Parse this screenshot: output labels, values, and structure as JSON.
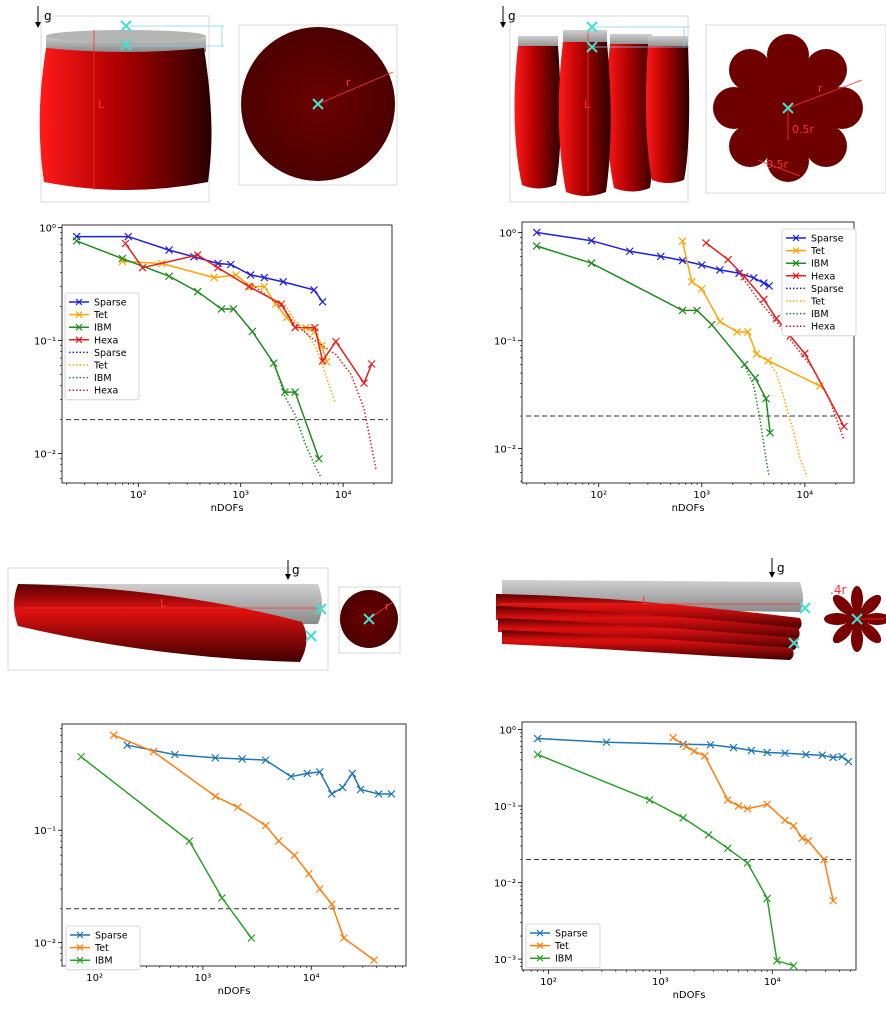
{
  "illustrations": {
    "a": {
      "g": "g",
      "L": "L",
      "r": "r"
    },
    "b": {
      "g": "g",
      "L": "L",
      "r": "r",
      "half1": "0.5r",
      "half2": "0.5r"
    },
    "c": {
      "g": "g",
      "L": "L",
      "r": "r"
    },
    "d": {
      "g": "g",
      "L": "L",
      "r": ".4r"
    }
  },
  "colors": {
    "Sparse": "#1f1fe0",
    "Tet": "#ffa500",
    "IBM": "#1e8c1e",
    "Hexa": "#e81c1c",
    "Sparse_mpl": "#1f77b4",
    "Tet_mpl": "#ff7f0e",
    "IBM_mpl": "#2ca02c",
    "body_red": "#8b0000",
    "cap_grey": "#9a9a9a",
    "cross": "#40e0d0"
  },
  "chart_data": [
    {
      "type": "line",
      "xscale": "log",
      "yscale": "log",
      "xlim": [
        18,
        30000
      ],
      "ylim": [
        0.0055,
        1.05
      ],
      "xlabel": "nDOFs",
      "ylabel": "",
      "xticks": [
        {
          "v": 100,
          "t": "10²"
        },
        {
          "v": 1000,
          "t": "10³"
        },
        {
          "v": 10000,
          "t": "10⁴"
        }
      ],
      "yticks": [
        {
          "v": 0.01,
          "t": "10⁻²"
        },
        {
          "v": 0.1,
          "t": "10⁻¹"
        },
        {
          "v": 1,
          "t": "10⁰"
        }
      ],
      "hline": 0.02,
      "legend": "center-left",
      "series": [
        {
          "name": "Sparse",
          "style": "solid",
          "marker": true,
          "colorKey": "Sparse",
          "x": [
            25,
            80,
            200,
            350,
            600,
            800,
            1250,
            1700,
            2600,
            5200,
            6300
          ],
          "y": [
            0.83,
            0.83,
            0.63,
            0.55,
            0.48,
            0.47,
            0.38,
            0.36,
            0.33,
            0.28,
            0.22
          ]
        },
        {
          "name": "Tet",
          "style": "solid",
          "marker": true,
          "colorKey": "Tet",
          "x": [
            70,
            170,
            550,
            900,
            1250,
            1700,
            2200,
            2800,
            3400,
            4300,
            5300,
            6200,
            6900
          ],
          "y": [
            0.5,
            0.48,
            0.36,
            0.38,
            0.3,
            0.3,
            0.21,
            0.16,
            0.13,
            0.13,
            0.12,
            0.09,
            0.065
          ]
        },
        {
          "name": "IBM",
          "style": "solid",
          "marker": true,
          "colorKey": "IBM",
          "x": [
            25,
            70,
            200,
            380,
            650,
            850,
            1300,
            2100,
            2700,
            3400,
            5800
          ],
          "y": [
            0.76,
            0.53,
            0.37,
            0.27,
            0.19,
            0.19,
            0.12,
            0.063,
            0.035,
            0.035,
            0.009
          ]
        },
        {
          "name": "Hexa",
          "style": "solid",
          "marker": true,
          "colorKey": "Hexa",
          "x": [
            75,
            110,
            380,
            600,
            1200,
            2500,
            3400,
            5300,
            6300,
            8500,
            16000,
            19000
          ],
          "y": [
            0.72,
            0.44,
            0.57,
            0.44,
            0.3,
            0.21,
            0.13,
            0.13,
            0.066,
            0.098,
            0.042,
            0.062
          ]
        },
        {
          "name": "Sparse",
          "style": "dotted",
          "marker": false,
          "colorKey": "Sparse",
          "x": [],
          "y": []
        },
        {
          "name": "Tet",
          "style": "dotted",
          "marker": false,
          "colorKey": "Tet",
          "x": [
            2600,
            3400,
            4300,
            5300,
            6300,
            7300,
            8300
          ],
          "y": [
            0.22,
            0.15,
            0.12,
            0.09,
            0.06,
            0.04,
            0.029
          ]
        },
        {
          "name": "IBM",
          "style": "dotted",
          "marker": false,
          "colorKey": "IBM",
          "x": [
            2100,
            2700,
            3400,
            4300,
            5300,
            6000
          ],
          "y": [
            0.065,
            0.032,
            0.022,
            0.012,
            0.0078,
            0.0063
          ]
        },
        {
          "name": "Hexa",
          "style": "dotted",
          "marker": false,
          "colorKey": "Hexa",
          "x": [
            1300,
            2500,
            3400,
            5300,
            8500,
            12000,
            16000,
            21000
          ],
          "y": [
            0.31,
            0.2,
            0.14,
            0.1,
            0.075,
            0.05,
            0.025,
            0.0072
          ]
        }
      ]
    },
    {
      "type": "line",
      "xscale": "log",
      "yscale": "log",
      "xlim": [
        18,
        30000
      ],
      "ylim": [
        0.0048,
        1.25
      ],
      "xlabel": "nDOFs",
      "ylabel": "",
      "xticks": [
        {
          "v": 100,
          "t": "10²"
        },
        {
          "v": 1000,
          "t": "10³"
        },
        {
          "v": 10000,
          "t": "10⁴"
        }
      ],
      "yticks": [
        {
          "v": 0.01,
          "t": "10⁻²"
        },
        {
          "v": 0.1,
          "t": "10⁻¹"
        },
        {
          "v": 1,
          "t": "10⁰"
        }
      ],
      "hline": 0.02,
      "legend": "top-right",
      "series": [
        {
          "name": "Sparse",
          "style": "solid",
          "marker": true,
          "colorKey": "Sparse",
          "x": [
            25,
            85,
            200,
            400,
            650,
            1000,
            1500,
            2300,
            3200,
            4000,
            4500
          ],
          "y": [
            1.0,
            0.84,
            0.67,
            0.6,
            0.55,
            0.5,
            0.45,
            0.42,
            0.38,
            0.34,
            0.32
          ]
        },
        {
          "name": "Tet",
          "style": "solid",
          "marker": true,
          "colorKey": "Tet",
          "x": [
            650,
            800,
            1000,
            1500,
            2200,
            2800,
            3400,
            4400,
            14000
          ],
          "y": [
            0.83,
            0.35,
            0.3,
            0.15,
            0.12,
            0.12,
            0.075,
            0.065,
            0.038
          ]
        },
        {
          "name": "IBM",
          "style": "solid",
          "marker": true,
          "colorKey": "IBM",
          "x": [
            25,
            85,
            650,
            900,
            1250,
            2600,
            3300,
            4200,
            4600
          ],
          "y": [
            0.75,
            0.52,
            0.19,
            0.19,
            0.14,
            0.06,
            0.045,
            0.029,
            0.014
          ]
        },
        {
          "name": "Hexa",
          "style": "solid",
          "marker": true,
          "colorKey": "Hexa",
          "x": [
            1100,
            1800,
            2600,
            4000,
            5300,
            7200,
            10000,
            24000
          ],
          "y": [
            0.8,
            0.56,
            0.39,
            0.24,
            0.16,
            0.11,
            0.076,
            0.016
          ]
        },
        {
          "name": "Sparse",
          "style": "dotted",
          "marker": false,
          "colorKey": "Sparse",
          "x": [],
          "y": []
        },
        {
          "name": "Tet",
          "style": "dotted",
          "marker": false,
          "colorKey": "Tet",
          "x": [
            4400,
            5300,
            6000,
            7000,
            8000,
            9000,
            10500
          ],
          "y": [
            0.065,
            0.05,
            0.034,
            0.02,
            0.013,
            0.008,
            0.0055
          ]
        },
        {
          "name": "IBM",
          "style": "dotted",
          "marker": false,
          "colorKey": "IBM",
          "x": [
            2600,
            3200,
            3700,
            4200,
            4500
          ],
          "y": [
            0.06,
            0.038,
            0.018,
            0.008,
            0.0055
          ]
        },
        {
          "name": "Hexa",
          "style": "dotted",
          "marker": false,
          "colorKey": "Hexa",
          "x": [
            2200,
            3400,
            5300,
            8000,
            12000,
            17000,
            24000
          ],
          "y": [
            0.45,
            0.25,
            0.15,
            0.09,
            0.055,
            0.03,
            0.012
          ]
        }
      ]
    },
    {
      "type": "line",
      "xscale": "log",
      "yscale": "log",
      "xlim": [
        50,
        75000
      ],
      "ylim": [
        0.0062,
        0.88
      ],
      "xlabel": "nDOFs",
      "ylabel": "",
      "xticks": [
        {
          "v": 100,
          "t": "10²"
        },
        {
          "v": 1000,
          "t": "10³"
        },
        {
          "v": 10000,
          "t": "10⁴"
        }
      ],
      "yticks": [
        {
          "v": 0.01,
          "t": "10⁻²"
        },
        {
          "v": 0.1,
          "t": "10⁻¹"
        }
      ],
      "hline": 0.02,
      "legend": "bottom-left",
      "series": [
        {
          "name": "Sparse",
          "style": "solid",
          "marker": true,
          "colorKey": "Sparse_mpl",
          "x": [
            200,
            550,
            1300,
            2300,
            3800,
            6500,
            9200,
            12000,
            15500,
            19500,
            24000,
            28500,
            42000,
            55000
          ],
          "y": [
            0.57,
            0.47,
            0.44,
            0.43,
            0.42,
            0.3,
            0.32,
            0.33,
            0.21,
            0.24,
            0.32,
            0.23,
            0.21,
            0.21
          ]
        },
        {
          "name": "Tet",
          "style": "solid",
          "marker": true,
          "colorKey": "Tet_mpl",
          "x": [
            150,
            350,
            1300,
            2100,
            3800,
            5000,
            7000,
            9500,
            12000,
            15500,
            20000,
            38000
          ],
          "y": [
            0.7,
            0.5,
            0.2,
            0.16,
            0.11,
            0.08,
            0.06,
            0.041,
            0.03,
            0.022,
            0.011,
            0.007
          ]
        },
        {
          "name": "IBM",
          "style": "solid",
          "marker": true,
          "colorKey": "IBM_mpl",
          "x": [
            75,
            750,
            1500,
            2800
          ],
          "y": [
            0.45,
            0.08,
            0.025,
            0.011
          ]
        }
      ]
    },
    {
      "type": "line",
      "xscale": "log",
      "yscale": "log",
      "xlim": [
        58,
        56000
      ],
      "ylim": [
        0.00072,
        1.25
      ],
      "xlabel": "nDOFs",
      "ylabel": "",
      "xticks": [
        {
          "v": 100,
          "t": "10²"
        },
        {
          "v": 1000,
          "t": "10³"
        },
        {
          "v": 10000,
          "t": "10⁴"
        }
      ],
      "yticks": [
        {
          "v": 0.001,
          "t": "10⁻³"
        },
        {
          "v": 0.01,
          "t": "10⁻²"
        },
        {
          "v": 0.1,
          "t": "10⁻¹"
        },
        {
          "v": 1,
          "t": "10⁰"
        }
      ],
      "hline": 0.02,
      "legend": "bottom-left",
      "series": [
        {
          "name": "Sparse",
          "style": "solid",
          "marker": true,
          "colorKey": "Sparse_mpl",
          "x": [
            80,
            330,
            1600,
            2800,
            4500,
            6500,
            9000,
            13000,
            20000,
            28000,
            35000,
            42000,
            48000
          ],
          "y": [
            0.76,
            0.68,
            0.64,
            0.63,
            0.58,
            0.53,
            0.5,
            0.49,
            0.47,
            0.46,
            0.43,
            0.44,
            0.38
          ]
        },
        {
          "name": "Tet",
          "style": "solid",
          "marker": true,
          "colorKey": "Tet_mpl",
          "x": [
            1300,
            1700,
            2000,
            2500,
            4000,
            5000,
            6000,
            9000,
            13000,
            15500,
            18500,
            21000,
            29000,
            35000
          ],
          "y": [
            0.78,
            0.6,
            0.52,
            0.45,
            0.12,
            0.1,
            0.092,
            0.105,
            0.065,
            0.055,
            0.038,
            0.035,
            0.02,
            0.0058
          ]
        },
        {
          "name": "IBM",
          "style": "solid",
          "marker": true,
          "colorKey": "IBM_mpl",
          "x": [
            80,
            800,
            1600,
            2700,
            4000,
            6000,
            9000,
            11000,
            15500
          ],
          "y": [
            0.47,
            0.12,
            0.07,
            0.042,
            0.028,
            0.018,
            0.0062,
            0.00095,
            0.00082
          ]
        }
      ]
    }
  ]
}
